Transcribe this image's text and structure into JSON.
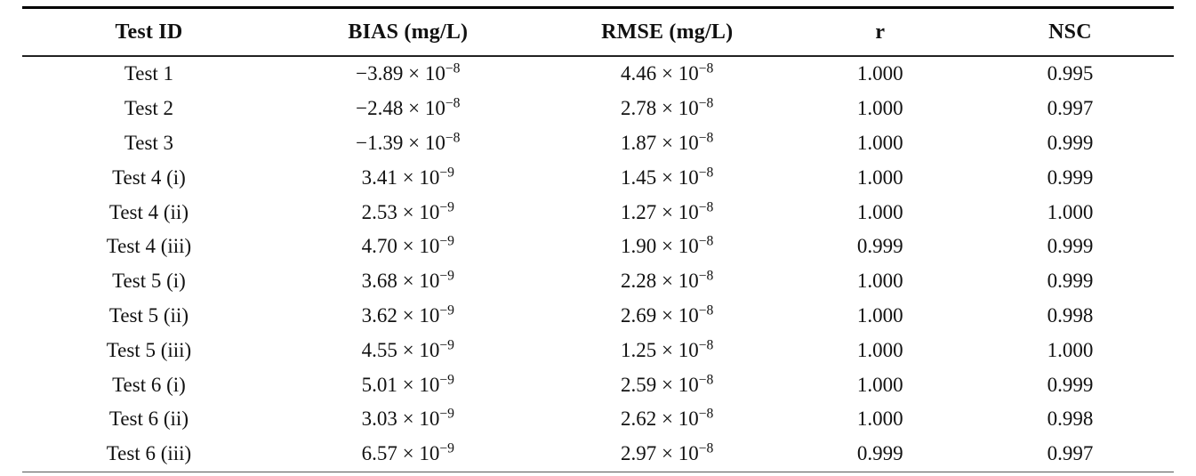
{
  "table": {
    "columns": [
      "Test ID",
      "BIAS (mg/L)",
      "RMSE (mg/L)",
      "r",
      "NSC"
    ],
    "format": {
      "sci_connector": " × 10"
    },
    "rows": [
      {
        "test_id": "Test 1",
        "bias": {
          "coef": "−3.89",
          "exp": "−8"
        },
        "rmse": {
          "coef": "4.46",
          "exp": "−8"
        },
        "r": "1.000",
        "nsc": "0.995"
      },
      {
        "test_id": "Test 2",
        "bias": {
          "coef": "−2.48",
          "exp": "−8"
        },
        "rmse": {
          "coef": "2.78",
          "exp": "−8"
        },
        "r": "1.000",
        "nsc": "0.997"
      },
      {
        "test_id": "Test 3",
        "bias": {
          "coef": "−1.39",
          "exp": "−8"
        },
        "rmse": {
          "coef": "1.87",
          "exp": "−8"
        },
        "r": "1.000",
        "nsc": "0.999"
      },
      {
        "test_id": "Test 4 (i)",
        "bias": {
          "coef": "3.41",
          "exp": "−9"
        },
        "rmse": {
          "coef": "1.45",
          "exp": "−8"
        },
        "r": "1.000",
        "nsc": "0.999"
      },
      {
        "test_id": "Test 4 (ii)",
        "bias": {
          "coef": "2.53",
          "exp": "−9"
        },
        "rmse": {
          "coef": "1.27",
          "exp": "−8"
        },
        "r": "1.000",
        "nsc": "1.000"
      },
      {
        "test_id": "Test 4 (iii)",
        "bias": {
          "coef": "4.70",
          "exp": "−9"
        },
        "rmse": {
          "coef": "1.90",
          "exp": "−8"
        },
        "r": "0.999",
        "nsc": "0.999"
      },
      {
        "test_id": "Test 5 (i)",
        "bias": {
          "coef": "3.68",
          "exp": "−9"
        },
        "rmse": {
          "coef": "2.28",
          "exp": "−8"
        },
        "r": "1.000",
        "nsc": "0.999"
      },
      {
        "test_id": "Test 5 (ii)",
        "bias": {
          "coef": "3.62",
          "exp": "−9"
        },
        "rmse": {
          "coef": "2.69",
          "exp": "−8"
        },
        "r": "1.000",
        "nsc": "0.998"
      },
      {
        "test_id": "Test 5 (iii)",
        "bias": {
          "coef": "4.55",
          "exp": "−9"
        },
        "rmse": {
          "coef": "1.25",
          "exp": "−8"
        },
        "r": "1.000",
        "nsc": "1.000"
      },
      {
        "test_id": "Test 6 (i)",
        "bias": {
          "coef": "5.01",
          "exp": "−9"
        },
        "rmse": {
          "coef": "2.59",
          "exp": "−8"
        },
        "r": "1.000",
        "nsc": "0.999"
      },
      {
        "test_id": "Test 6 (ii)",
        "bias": {
          "coef": "3.03",
          "exp": "−9"
        },
        "rmse": {
          "coef": "2.62",
          "exp": "−8"
        },
        "r": "1.000",
        "nsc": "0.998"
      },
      {
        "test_id": "Test 6 (iii)",
        "bias": {
          "coef": "6.57",
          "exp": "−9"
        },
        "rmse": {
          "coef": "2.97",
          "exp": "−8"
        },
        "r": "0.999",
        "nsc": "0.997"
      }
    ]
  }
}
